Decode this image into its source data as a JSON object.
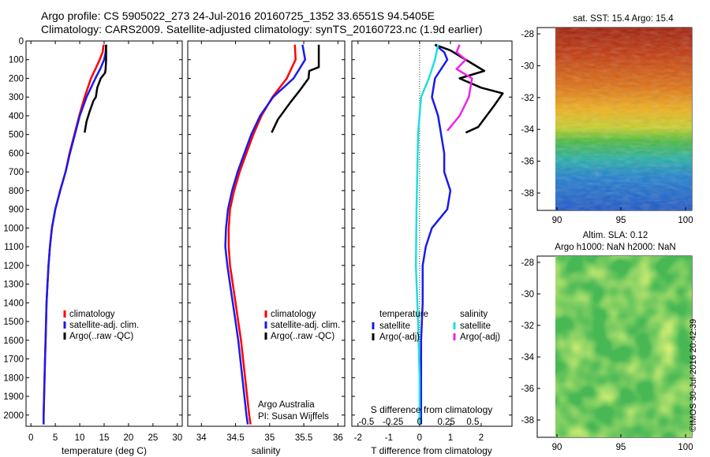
{
  "header": {
    "line1": "Argo profile: CS 5905022_273 24-Jul-2016 20160725_1352 33.6551S 94.5405E",
    "line2": "Climatology: CARS2009. Satellite-adjusted climatology: synTS_20160723.nc (1.9d earlier)"
  },
  "stamp": "©IMOS 30-Jul-2016 20:42:39",
  "colors": {
    "climatology": "#ff0000",
    "satellite": "#1a1aee",
    "argo": "#000000",
    "sal_satellite": "#22dddd",
    "sal_argo": "#ee22ee"
  },
  "chart_data": [
    {
      "type": "line",
      "name": "temperature",
      "xlabel": "temperature (deg C)",
      "xlim": [
        -1,
        31
      ],
      "xticks": [
        0,
        5,
        10,
        15,
        20,
        25,
        30
      ],
      "ylim": [
        2060,
        0
      ],
      "yticks": [
        0,
        100,
        200,
        300,
        400,
        500,
        600,
        700,
        800,
        900,
        1000,
        1100,
        1200,
        1300,
        1400,
        1500,
        1600,
        1700,
        1800,
        1900,
        2000
      ],
      "legend": [
        "climatology",
        "satellite-adj. clim.",
        "Argo(..raw -QC)"
      ],
      "series": [
        {
          "name": "climatology",
          "color": "#ff0000",
          "points": [
            [
              14.9,
              20
            ],
            [
              14.7,
              60
            ],
            [
              14.1,
              100
            ],
            [
              13.2,
              150
            ],
            [
              12.3,
              200
            ],
            [
              11.0,
              300
            ],
            [
              9.9,
              400
            ],
            [
              8.9,
              500
            ],
            [
              7.9,
              600
            ],
            [
              7.1,
              700
            ],
            [
              6.0,
              800
            ],
            [
              5.0,
              900
            ],
            [
              4.3,
              1000
            ],
            [
              3.9,
              1100
            ],
            [
              3.6,
              1200
            ],
            [
              3.4,
              1300
            ],
            [
              3.2,
              1400
            ],
            [
              3.1,
              1500
            ],
            [
              3.0,
              1600
            ],
            [
              2.9,
              1700
            ],
            [
              2.8,
              1800
            ],
            [
              2.7,
              1900
            ],
            [
              2.6,
              2000
            ],
            [
              2.6,
              2050
            ]
          ]
        },
        {
          "name": "satellite-adj. clim.",
          "color": "#1a1aee",
          "points": [
            [
              15.4,
              20
            ],
            [
              15.3,
              60
            ],
            [
              15.0,
              100
            ],
            [
              14.2,
              150
            ],
            [
              13.2,
              200
            ],
            [
              11.4,
              300
            ],
            [
              10.0,
              400
            ],
            [
              9.0,
              500
            ],
            [
              8.0,
              600
            ],
            [
              7.1,
              700
            ],
            [
              6.0,
              800
            ],
            [
              5.0,
              900
            ],
            [
              4.3,
              1000
            ],
            [
              3.9,
              1100
            ],
            [
              3.6,
              1200
            ],
            [
              3.4,
              1300
            ],
            [
              3.2,
              1400
            ],
            [
              3.1,
              1500
            ],
            [
              3.0,
              1600
            ],
            [
              2.9,
              1700
            ],
            [
              2.8,
              1800
            ],
            [
              2.7,
              1900
            ],
            [
              2.6,
              2000
            ],
            [
              2.6,
              2050
            ]
          ]
        },
        {
          "name": "Argo(..raw -QC)",
          "color": "#000000",
          "points": [
            [
              15.4,
              20
            ],
            [
              15.4,
              100
            ],
            [
              15.3,
              150
            ],
            [
              15.2,
              170
            ],
            [
              14.3,
              200
            ],
            [
              13.6,
              250
            ],
            [
              13.3,
              300
            ],
            [
              12.8,
              320
            ],
            [
              12.0,
              380
            ],
            [
              11.4,
              430
            ],
            [
              11.0,
              490
            ]
          ]
        }
      ]
    },
    {
      "type": "line",
      "name": "salinity",
      "xlabel": "salinity",
      "xlim": [
        33.8,
        36.1
      ],
      "xticks": [
        34,
        34.5,
        35,
        35.5,
        36
      ],
      "ylim": [
        2060,
        0
      ],
      "legend": [
        "climatology",
        "satellite-adj. clim.",
        "Argo(..raw -QC)"
      ],
      "annotation": [
        "Argo Australia",
        "PI: Susan Wijffels"
      ],
      "series": [
        {
          "name": "climatology",
          "color": "#ff0000",
          "points": [
            [
              35.37,
              20
            ],
            [
              35.38,
              100
            ],
            [
              35.25,
              200
            ],
            [
              35.04,
              300
            ],
            [
              34.88,
              400
            ],
            [
              34.76,
              500
            ],
            [
              34.66,
              600
            ],
            [
              34.56,
              700
            ],
            [
              34.48,
              800
            ],
            [
              34.42,
              900
            ],
            [
              34.4,
              1000
            ],
            [
              34.4,
              1100
            ],
            [
              34.42,
              1200
            ],
            [
              34.46,
              1300
            ],
            [
              34.5,
              1400
            ],
            [
              34.54,
              1500
            ],
            [
              34.58,
              1600
            ],
            [
              34.61,
              1700
            ],
            [
              34.64,
              1800
            ],
            [
              34.67,
              1900
            ],
            [
              34.7,
              2000
            ],
            [
              34.72,
              2050
            ]
          ]
        },
        {
          "name": "satellite-adj. clim.",
          "color": "#1a1aee",
          "points": [
            [
              35.48,
              20
            ],
            [
              35.52,
              100
            ],
            [
              35.35,
              200
            ],
            [
              35.05,
              300
            ],
            [
              34.86,
              400
            ],
            [
              34.73,
              500
            ],
            [
              34.63,
              600
            ],
            [
              34.53,
              700
            ],
            [
              34.45,
              800
            ],
            [
              34.39,
              900
            ],
            [
              34.36,
              1000
            ],
            [
              34.35,
              1100
            ],
            [
              34.38,
              1200
            ],
            [
              34.42,
              1300
            ],
            [
              34.46,
              1400
            ],
            [
              34.5,
              1500
            ],
            [
              34.54,
              1600
            ],
            [
              34.57,
              1700
            ],
            [
              34.6,
              1800
            ],
            [
              34.63,
              1900
            ],
            [
              34.66,
              2000
            ],
            [
              34.68,
              2050
            ]
          ]
        },
        {
          "name": "Argo(..raw -QC)",
          "color": "#000000",
          "points": [
            [
              35.72,
              20
            ],
            [
              35.72,
              140
            ],
            [
              35.58,
              160
            ],
            [
              35.57,
              200
            ],
            [
              35.45,
              260
            ],
            [
              35.3,
              330
            ],
            [
              35.12,
              420
            ],
            [
              35.03,
              490
            ]
          ]
        }
      ]
    },
    {
      "type": "line",
      "name": "difference",
      "xlabel": "T difference from climatology",
      "xlim": [
        -2.2,
        3.0
      ],
      "xticks": [
        -2,
        -1,
        0,
        1,
        2
      ],
      "top_xlabel": "S difference from climatology",
      "top_xticks": [
        "-0.5",
        "-0.25",
        "0",
        "0.25",
        "0.5"
      ],
      "ylim": [
        2060,
        0
      ],
      "legend_temperature": {
        "title": "temperature",
        "items": [
          "satellite",
          "Argo(-adj)"
        ]
      },
      "legend_salinity": {
        "title": "salinity",
        "items": [
          "satellite",
          "Argo(-adj)"
        ]
      },
      "series": [
        {
          "name": "temperature satellite",
          "color": "#1a1aee",
          "points": [
            [
              0.5,
              20
            ],
            [
              0.8,
              60
            ],
            [
              0.9,
              100
            ],
            [
              0.5,
              200
            ],
            [
              0.4,
              300
            ],
            [
              0.6,
              400
            ],
            [
              0.8,
              600
            ],
            [
              0.8,
              700
            ],
            [
              1.0,
              800
            ],
            [
              0.9,
              900
            ],
            [
              0.4,
              1000
            ],
            [
              0.2,
              1100
            ],
            [
              0.1,
              1200
            ],
            [
              0.1,
              1400
            ],
            [
              0.05,
              1600
            ],
            [
              0.05,
              2050
            ]
          ]
        },
        {
          "name": "Argo temp diff",
          "color": "#000000",
          "points": [
            [
              0.5,
              20
            ],
            [
              1.0,
              50
            ],
            [
              1.3,
              80
            ],
            [
              2.1,
              160
            ],
            [
              1.3,
              200
            ],
            [
              2.0,
              250
            ],
            [
              2.7,
              280
            ],
            [
              2.4,
              350
            ],
            [
              1.9,
              460
            ],
            [
              1.5,
              490
            ]
          ]
        },
        {
          "name": "salinity satellite",
          "color": "#22dddd",
          "points": [
            [
              0.6,
              20
            ],
            [
              0.5,
              100
            ],
            [
              0.3,
              200
            ],
            [
              0.05,
              300
            ],
            [
              -0.05,
              500
            ],
            [
              -0.1,
              900
            ],
            [
              -0.12,
              1200
            ],
            [
              -0.05,
              1500
            ],
            [
              0.0,
              1800
            ],
            [
              0.0,
              2050
            ]
          ]
        },
        {
          "name": "Argo salinity diff",
          "color": "#ee22ee",
          "points": [
            [
              1.3,
              20
            ],
            [
              1.2,
              60
            ],
            [
              1.5,
              100
            ],
            [
              1.2,
              150
            ],
            [
              1.7,
              200
            ],
            [
              1.6,
              300
            ],
            [
              1.3,
              400
            ],
            [
              0.9,
              480
            ]
          ]
        }
      ]
    }
  ],
  "map_top": {
    "title": "sat. SST: 15.4  Argo: 15.4",
    "ylabels": [
      "-28",
      "-30",
      "-32",
      "-34",
      "-36",
      "-38"
    ],
    "xlabels": [
      "90",
      "95",
      "100"
    ]
  },
  "map_bottom": {
    "title_line1": "Altim. SLA: 0.12",
    "title_line2": "Argo h1000: NaN h2000: NaN",
    "ylabels": [
      "-28",
      "-30",
      "-32",
      "-34",
      "-36",
      "-38"
    ],
    "xlabels": [
      "90",
      "95",
      "100"
    ]
  }
}
